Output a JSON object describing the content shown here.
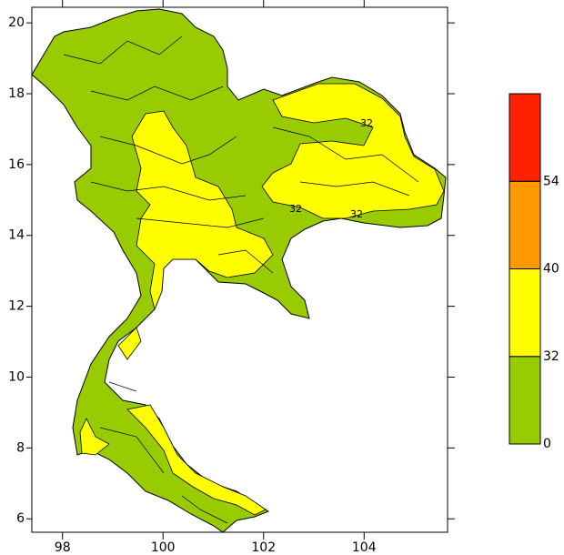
{
  "map": {
    "xlim": [
      97.39,
      105.66
    ],
    "ylim": [
      5.62,
      20.44
    ],
    "xticks": [
      98,
      100,
      102,
      104
    ],
    "yticks": [
      6,
      8,
      10,
      12,
      14,
      16,
      18,
      20
    ],
    "colorbar": {
      "levels": [
        0,
        32,
        40,
        54
      ],
      "colors": [
        "#99cc00",
        "#ffff00",
        "#ff9900",
        "#ff2200"
      ]
    },
    "contour_labels": [
      "32",
      "32",
      "32"
    ]
  }
}
